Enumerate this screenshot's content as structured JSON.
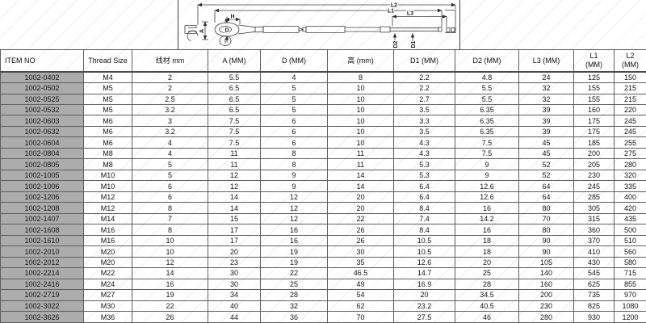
{
  "drawing": {
    "labels": {
      "l2": "L2",
      "l1": "L1",
      "l3": "L3",
      "h": "H",
      "d": "D",
      "a": "A",
      "d2": "D2",
      "d1": "D1"
    }
  },
  "table": {
    "columns": [
      {
        "label": "ITEM NO"
      },
      {
        "label": "Thread Size"
      },
      {
        "label": "线材 mm"
      },
      {
        "label": "A (MM)"
      },
      {
        "label": "D (MM)"
      },
      {
        "label": "高 (mm)"
      },
      {
        "label": "D1 (MM)"
      },
      {
        "label": "D2 (MM)"
      },
      {
        "label": "L3 (MM)"
      },
      {
        "label": "L1",
        "sub": "(MM)"
      },
      {
        "label": "L2",
        "sub": "(MM)"
      }
    ],
    "rows": [
      [
        "1002-0402",
        "M4",
        "2",
        "5.5",
        "4",
        "8",
        "2.2",
        "4.8",
        "24",
        "125",
        "150"
      ],
      [
        "1002-0502",
        "M5",
        "2",
        "6.5",
        "5",
        "10",
        "2.2",
        "5.5",
        "32",
        "155",
        "215"
      ],
      [
        "1002-0525",
        "M5",
        "2.5",
        "6.5",
        "5",
        "10",
        "2.7",
        "5.5",
        "32",
        "155",
        "215"
      ],
      [
        "1002-0532",
        "M5",
        "3.2",
        "6.5",
        "5",
        "10",
        "3.5",
        "6.35",
        "39",
        "160",
        "220"
      ],
      [
        "1002-0603",
        "M6",
        "3",
        "7.5",
        "6",
        "10",
        "3.3",
        "6.35",
        "39",
        "175",
        "245"
      ],
      [
        "1002-0632",
        "M6",
        "3.2",
        "7.5",
        "6",
        "10",
        "3.5",
        "6.35",
        "39",
        "175",
        "245"
      ],
      [
        "1002-0604",
        "M6",
        "4",
        "7.5",
        "6",
        "10",
        "4.3",
        "7.5",
        "45",
        "185",
        "255"
      ],
      [
        "1002-0804",
        "M8",
        "4",
        "11",
        "8",
        "11",
        "4.3",
        "7.5",
        "45",
        "200",
        "275"
      ],
      [
        "1002-0805",
        "M8",
        "5",
        "11",
        "8",
        "11",
        "5.3",
        "9",
        "52",
        "205",
        "280"
      ],
      [
        "1002-1005",
        "M10",
        "5",
        "12",
        "9",
        "14",
        "5.3",
        "9",
        "52",
        "230",
        "320"
      ],
      [
        "1002-1006",
        "M10",
        "6",
        "12",
        "9",
        "14",
        "6.4",
        "12.6",
        "64",
        "245",
        "335"
      ],
      [
        "1002-1206",
        "M12",
        "6",
        "14",
        "12",
        "20",
        "6.4",
        "12.6",
        "64",
        "285",
        "400"
      ],
      [
        "1002-1208",
        "M12",
        "8",
        "14",
        "12",
        "20",
        "8.4",
        "16",
        "80",
        "305",
        "420"
      ],
      [
        "1002-1407",
        "M14",
        "7",
        "15",
        "12",
        "22",
        "7.4",
        "14.2",
        "70",
        "315",
        "435"
      ],
      [
        "1002-1608",
        "M16",
        "8",
        "17",
        "16",
        "26",
        "8.4",
        "16",
        "80",
        "360",
        "500"
      ],
      [
        "1002-1610",
        "M16",
        "10",
        "17",
        "16",
        "26",
        "10.5",
        "18",
        "90",
        "370",
        "510"
      ],
      [
        "1002-2010",
        "M20",
        "10",
        "20",
        "19",
        "30",
        "10.5",
        "18",
        "90",
        "410",
        "560"
      ],
      [
        "1002-2012",
        "M20",
        "12",
        "23",
        "19",
        "35",
        "12.6",
        "20",
        "105",
        "430",
        "580"
      ],
      [
        "1002-2214",
        "M22",
        "14",
        "30",
        "22",
        "46.5",
        "14.7",
        "25",
        "140",
        "545",
        "715"
      ],
      [
        "1002-2416",
        "M24",
        "16",
        "30",
        "25",
        "49",
        "16.9",
        "28",
        "160",
        "625",
        "855"
      ],
      [
        "1002-2719",
        "M27",
        "19",
        "34",
        "28",
        "54",
        "20",
        "34.5",
        "200",
        "735",
        "970"
      ],
      [
        "1002-3022",
        "M30",
        "22",
        "40",
        "32",
        "62",
        "23.2",
        "40.5",
        "230",
        "825",
        "1080"
      ],
      [
        "1002-3626",
        "M36",
        "26",
        "44",
        "36",
        "70",
        "27.5",
        "46",
        "280",
        "930",
        "1200"
      ]
    ]
  },
  "colors": {
    "item_column_bg": "#acacac",
    "table_border": "#5e5e5e",
    "text": "#161616"
  }
}
